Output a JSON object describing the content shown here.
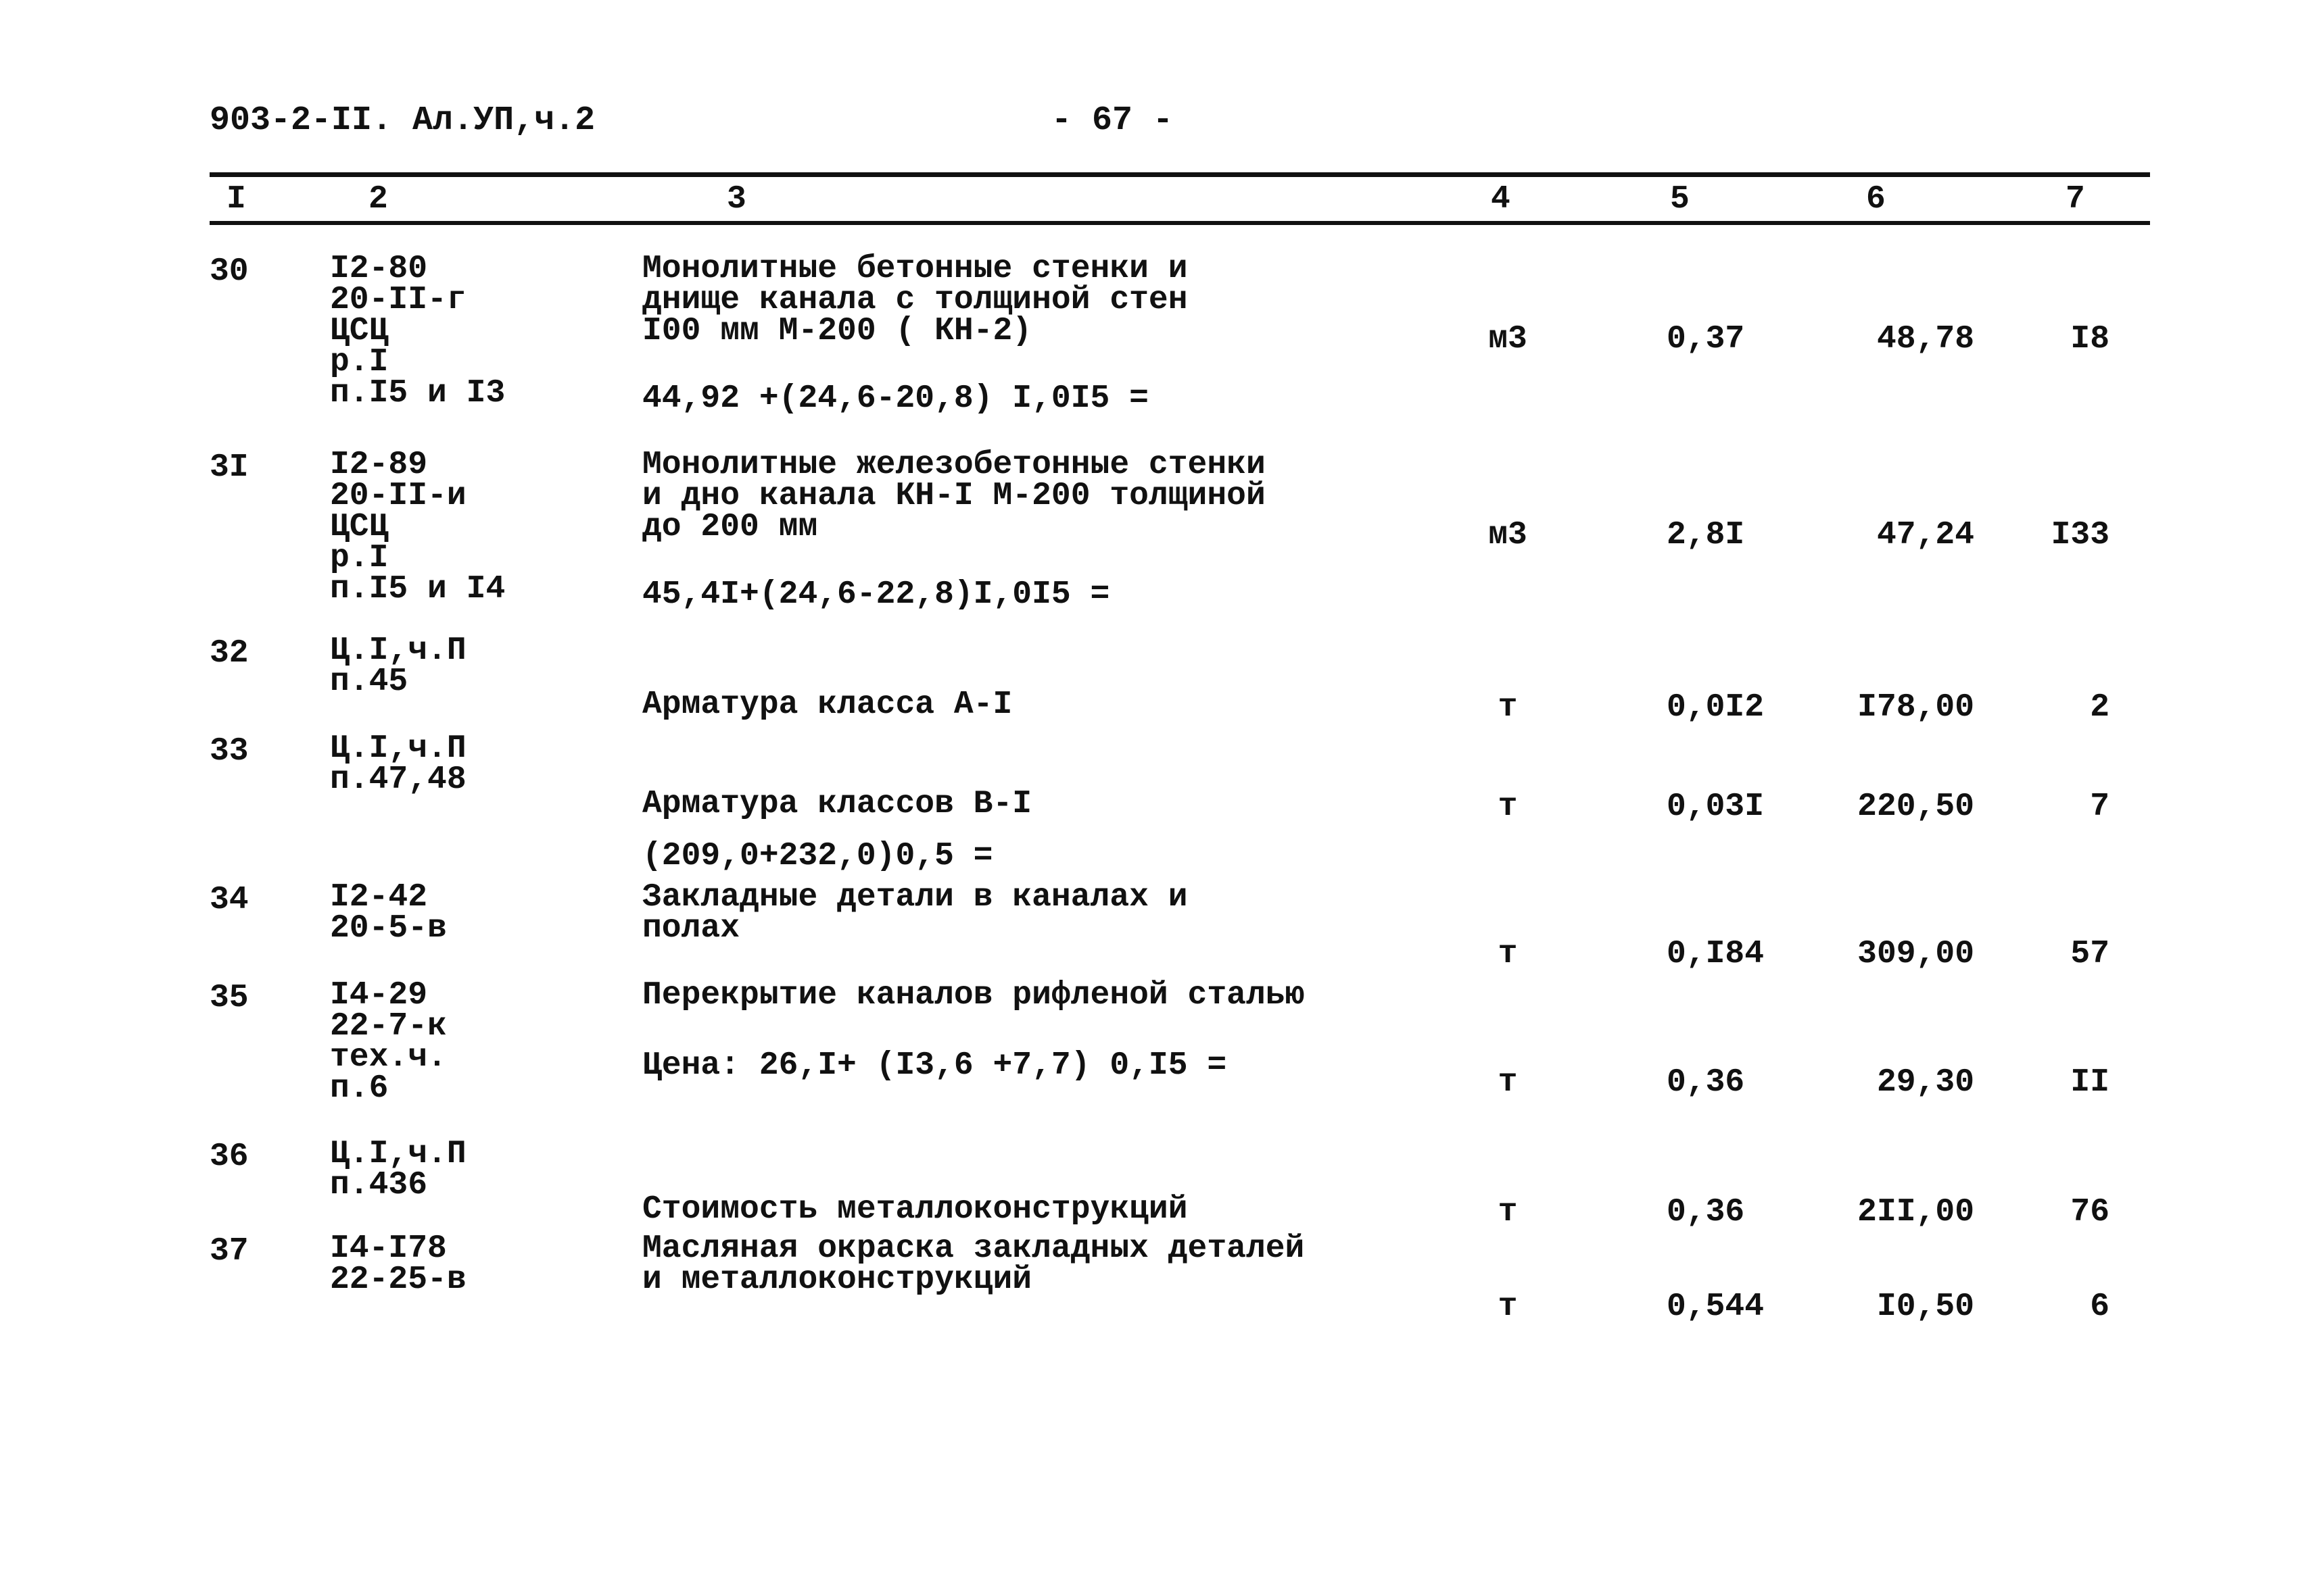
{
  "header": {
    "doc_code": "903-2-II. Ал.УП,ч.2",
    "page_number": "- 67 -"
  },
  "columns": [
    "I",
    "2",
    "3",
    "4",
    "5",
    "6",
    "7"
  ],
  "rows": [
    {
      "n": "30",
      "ref": [
        "I2-80",
        "20-II-г",
        "ЦСЦ",
        "р.I",
        "п.I5 и I3"
      ],
      "desc": [
        "Монолитные бетонные стенки и",
        "днище канала с толщиной стен",
        "I00 мм М-200 ( КН-2)"
      ],
      "formula": "44,92 +(24,6-20,8) I,0I5 =",
      "unit": "м3",
      "qty": "0,37",
      "price": "48,78",
      "total": "I8"
    },
    {
      "n": "3I",
      "ref": [
        "I2-89",
        "20-II-и",
        "ЦСЦ",
        "р.I",
        "п.I5 и I4"
      ],
      "desc": [
        "Монолитные железобетонные стенки",
        "и дно канала КН-I М-200 толщиной",
        "до 200 мм"
      ],
      "formula": "45,4I+(24,6-22,8)I,0I5 =",
      "unit": "м3",
      "qty": "2,8I",
      "price": "47,24",
      "total": "I33"
    },
    {
      "n": "32",
      "ref": [
        "Ц.I,ч.П",
        "п.45"
      ],
      "desc": [
        "Арматура класса А-I"
      ],
      "formula": "",
      "unit": "т",
      "qty": "0,0I2",
      "price": "I78,00",
      "total": "2"
    },
    {
      "n": "33",
      "ref": [
        "Ц.I,ч.П",
        "п.47,48"
      ],
      "desc": [
        "Арматура классов В-I"
      ],
      "formula": "(209,0+232,0)0,5 =",
      "unit": "т",
      "qty": "0,03I",
      "price": "220,50",
      "total": "7"
    },
    {
      "n": "34",
      "ref": [
        "I2-42",
        "20-5-в"
      ],
      "desc": [
        "Закладные детали в каналах и",
        "полах"
      ],
      "formula": "",
      "unit": "т",
      "qty": "0,I84",
      "price": "309,00",
      "total": "57"
    },
    {
      "n": "35",
      "ref": [
        "I4-29",
        "22-7-к",
        "тех.ч.",
        "п.6"
      ],
      "desc": [
        "Перекрытие каналов рифленой сталью"
      ],
      "formula": "Цена: 26,I+ (I3,6 +7,7) 0,I5 =",
      "unit": "т",
      "qty": "0,36",
      "price": "29,30",
      "total": "II"
    },
    {
      "n": "36",
      "ref": [
        "Ц.I,ч.П",
        "п.436"
      ],
      "desc": [
        "Стоимость металлоконструкций"
      ],
      "formula": "",
      "unit": "т",
      "qty": "0,36",
      "price": "2II,00",
      "total": "76"
    },
    {
      "n": "37",
      "ref": [
        "I4-I78",
        "22-25-в"
      ],
      "desc": [
        "Масляная окраска закладных деталей",
        "и металлоконструкций"
      ],
      "formula": "",
      "unit": "т",
      "qty": "0,544",
      "price": "I0,50",
      "total": "6"
    }
  ]
}
